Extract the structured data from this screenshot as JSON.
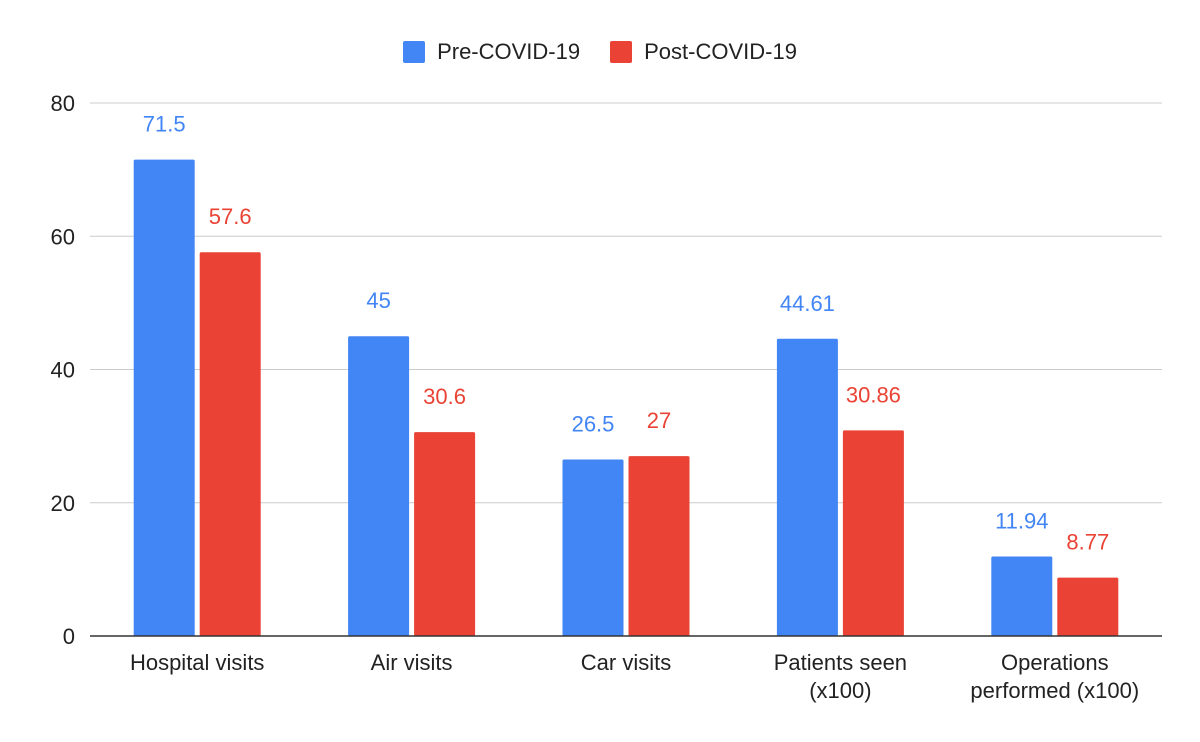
{
  "chart_data": {
    "type": "bar",
    "title": "",
    "xlabel": "",
    "ylabel": "",
    "categories": [
      [
        "Hospital visits"
      ],
      [
        "Air visits"
      ],
      [
        "Car visits"
      ],
      [
        "Patients seen",
        "(x100)"
      ],
      [
        "Operations",
        "performed (x100)"
      ]
    ],
    "series": [
      {
        "name": "Pre-COVID-19",
        "color": "#4285f4",
        "values": [
          71.5,
          45,
          26.5,
          44.61,
          11.94
        ],
        "labels": [
          "71.5",
          "45",
          "26.5",
          "44.61",
          "11.94"
        ]
      },
      {
        "name": "Post-COVID-19",
        "color": "#ea4335",
        "values": [
          57.6,
          30.6,
          27,
          30.86,
          8.77
        ],
        "labels": [
          "57.6",
          "30.6",
          "27",
          "30.86",
          "8.77"
        ]
      }
    ],
    "ylim": [
      0,
      80
    ],
    "yticks": [
      0,
      20,
      40,
      60,
      80
    ],
    "grid": true,
    "legend_position": "top-center"
  },
  "colors": {
    "gridline": "#cccccc",
    "axis": "#333333",
    "text": "#222222"
  }
}
